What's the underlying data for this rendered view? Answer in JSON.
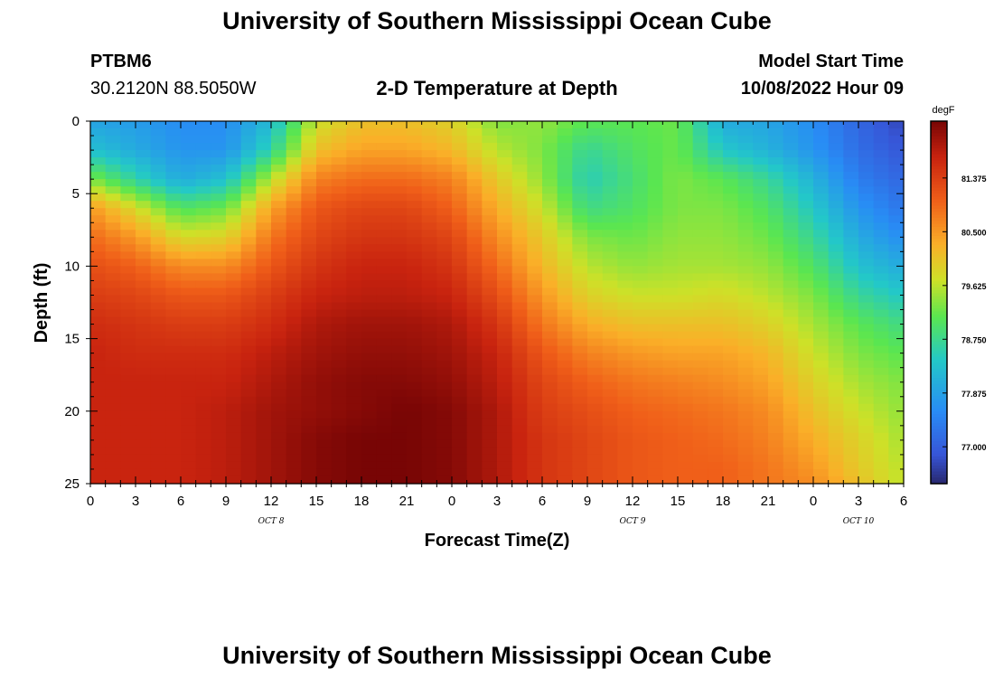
{
  "header": {
    "title": "University of Southern Mississippi Ocean Cube",
    "station": "PTBM6",
    "coords": "30.2120N  88.5050W",
    "subtitle": "2-D Temperature at Depth",
    "model_start_label": "Model Start Time",
    "model_start_value": "10/08/2022 Hour 09"
  },
  "footer": {
    "title": "University of Southern Mississippi Ocean Cube"
  },
  "chart_data": {
    "type": "heatmap",
    "title": "2-D Temperature at Depth",
    "xlabel": "Forecast Time(Z)",
    "ylabel": "Depth (ft)",
    "x_ticks": [
      "0",
      "3",
      "6",
      "9",
      "12",
      "15",
      "18",
      "21",
      "0",
      "3",
      "6",
      "9",
      "12",
      "15",
      "18",
      "21",
      "0",
      "3",
      "6"
    ],
    "x_range_hours": [
      0,
      54
    ],
    "y_ticks": [
      "0",
      "5",
      "10",
      "15",
      "20",
      "25"
    ],
    "y_range": [
      0,
      25
    ],
    "y_inverted": true,
    "date_labels": [
      {
        "text": "OCT 8",
        "hour": 12
      },
      {
        "text": "OCT 9",
        "hour": 36
      },
      {
        "text": "OCT 10",
        "hour": 51
      }
    ],
    "colorbar": {
      "units": "degF",
      "range": [
        76.4,
        82.3
      ],
      "ticks": [
        "81.375",
        "80.500",
        "79.625",
        "78.750",
        "77.875",
        "77.000"
      ],
      "tick_values": [
        81.375,
        80.5,
        79.625,
        78.75,
        77.875,
        77.0
      ]
    },
    "grid_hours": [
      0,
      3,
      6,
      9,
      12,
      15,
      18,
      21,
      24,
      27,
      30,
      33,
      36,
      39,
      42,
      45,
      48,
      51,
      54
    ],
    "grid_depths": [
      0,
      2,
      4,
      6,
      8,
      10,
      12,
      14,
      16,
      18,
      20,
      22,
      24,
      25
    ],
    "temperature_degF": [
      [
        77.9,
        77.8,
        77.6,
        77.6,
        78.2,
        79.7,
        80.1,
        80.1,
        79.9,
        79.3,
        79.4,
        79.1,
        79.1,
        79.2,
        78.0,
        77.9,
        77.6,
        77.1,
        76.7
      ],
      [
        78.3,
        78.0,
        77.7,
        77.7,
        78.6,
        80.1,
        80.4,
        80.4,
        80.2,
        79.6,
        79.3,
        78.7,
        79.0,
        79.2,
        78.4,
        78.1,
        77.7,
        77.2,
        76.9
      ],
      [
        79.3,
        78.6,
        78.0,
        78.3,
        79.6,
        80.7,
        80.9,
        80.9,
        80.7,
        80.0,
        79.4,
        78.5,
        78.9,
        79.3,
        79.1,
        78.7,
        78.1,
        77.4,
        77.1
      ],
      [
        80.5,
        79.8,
        79.0,
        79.2,
        80.4,
        81.1,
        81.3,
        81.3,
        81.0,
        80.3,
        79.7,
        78.8,
        79.0,
        79.3,
        79.3,
        79.0,
        78.4,
        77.7,
        77.3
      ],
      [
        80.9,
        80.5,
        79.8,
        79.9,
        80.8,
        81.3,
        81.5,
        81.5,
        81.3,
        80.6,
        80.0,
        79.3,
        79.2,
        79.4,
        79.4,
        79.2,
        78.7,
        78.0,
        77.6
      ],
      [
        81.2,
        81.0,
        80.6,
        80.6,
        81.1,
        81.5,
        81.7,
        81.7,
        81.5,
        80.9,
        80.2,
        79.6,
        79.4,
        79.5,
        79.5,
        79.4,
        79.0,
        78.3,
        78.0
      ],
      [
        81.4,
        81.3,
        81.1,
        81.1,
        81.4,
        81.7,
        81.8,
        81.8,
        81.7,
        81.2,
        80.5,
        79.9,
        79.7,
        79.7,
        79.8,
        79.6,
        79.3,
        78.7,
        78.4
      ],
      [
        81.6,
        81.5,
        81.4,
        81.4,
        81.6,
        81.9,
        82.0,
        82.0,
        81.9,
        81.5,
        80.8,
        80.3,
        80.1,
        80.1,
        80.1,
        79.9,
        79.5,
        79.1,
        78.8
      ],
      [
        81.7,
        81.6,
        81.6,
        81.6,
        81.8,
        82.0,
        82.1,
        82.1,
        82.0,
        81.7,
        81.1,
        80.7,
        80.5,
        80.4,
        80.4,
        80.2,
        79.7,
        79.3,
        79.1
      ],
      [
        81.7,
        81.7,
        81.7,
        81.7,
        81.9,
        82.1,
        82.2,
        82.2,
        82.1,
        81.8,
        81.3,
        81.0,
        80.8,
        80.7,
        80.6,
        80.4,
        79.9,
        79.5,
        79.3
      ],
      [
        81.7,
        81.7,
        81.7,
        81.8,
        82.0,
        82.1,
        82.2,
        82.3,
        82.2,
        81.9,
        81.4,
        81.2,
        81.0,
        80.9,
        80.8,
        80.6,
        80.1,
        79.7,
        79.4
      ],
      [
        81.7,
        81.7,
        81.7,
        81.8,
        82.0,
        82.2,
        82.3,
        82.3,
        82.2,
        81.9,
        81.5,
        81.3,
        81.1,
        81.0,
        80.9,
        80.7,
        80.3,
        79.9,
        79.5
      ],
      [
        81.7,
        81.7,
        81.7,
        81.8,
        82.0,
        82.2,
        82.3,
        82.3,
        82.2,
        81.9,
        81.5,
        81.3,
        81.1,
        81.0,
        81.0,
        80.8,
        80.5,
        80.0,
        79.6
      ],
      [
        81.7,
        81.7,
        81.7,
        81.8,
        82.0,
        82.2,
        82.3,
        82.3,
        82.2,
        81.9,
        81.5,
        81.3,
        81.1,
        81.0,
        81.0,
        80.8,
        80.6,
        80.1,
        79.6
      ]
    ]
  }
}
